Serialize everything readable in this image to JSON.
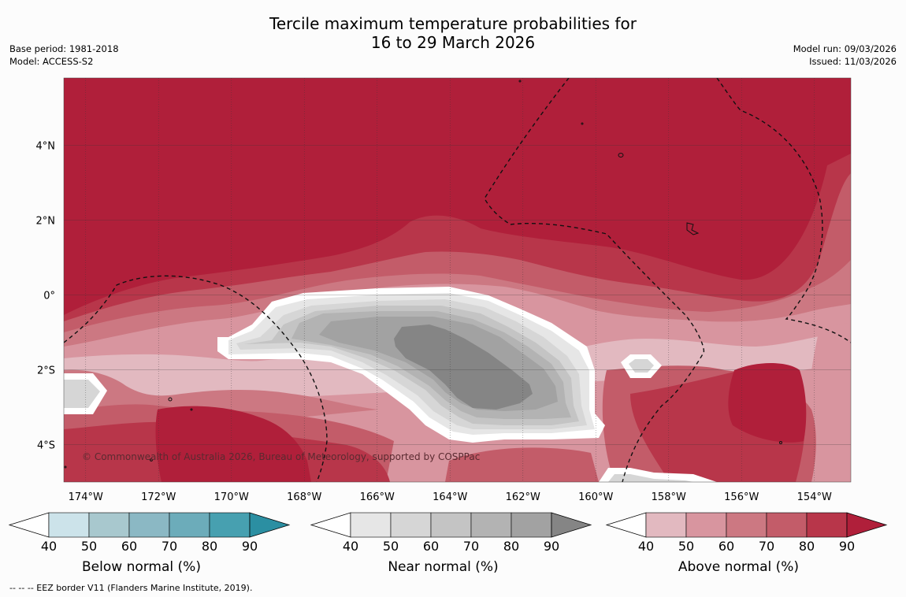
{
  "title": {
    "line1": "Tercile maximum temperature probabilities for",
    "line2": "16 to 29 March 2026"
  },
  "meta": {
    "base_period": "Base period: 1981-2018",
    "model": "Model: ACCESS-S2",
    "model_run": "Model run: 09/03/2026",
    "issued": "Issued: 11/03/2026"
  },
  "map": {
    "copyright": "© Commonwealth of Australia 2026, Bureau of Meteorology, supported by COSPPac",
    "lon_labels": [
      "174°W",
      "172°W",
      "170°W",
      "168°W",
      "166°W",
      "164°W",
      "162°W",
      "160°W",
      "158°W",
      "156°W",
      "154°W"
    ],
    "lat_labels": [
      "4°N",
      "2°N",
      "0°",
      "2°S",
      "4°S"
    ],
    "lon_range": [
      -174.6,
      -153.0
    ],
    "lat_range": [
      -5.0,
      5.8
    ],
    "lon_ticks": [
      -174,
      -172,
      -170,
      -168,
      -166,
      -164,
      -162,
      -160,
      -158,
      -156,
      -154
    ],
    "lat_ticks": [
      4,
      2,
      0,
      -2,
      -4
    ]
  },
  "colorbars": {
    "ticks": [
      "40",
      "50",
      "60",
      "70",
      "80",
      "90"
    ],
    "below": {
      "title": "Below normal (%)",
      "colors": [
        "#cce3ea",
        "#a8c8ce",
        "#8bb8c4",
        "#6cacba",
        "#47a0b0",
        "#2b8fa2"
      ]
    },
    "near": {
      "title": "Near normal (%)",
      "colors": [
        "#e6e6e6",
        "#d6d6d6",
        "#c4c4c4",
        "#b3b3b3",
        "#a2a2a2",
        "#858585"
      ]
    },
    "above": {
      "title": "Above normal (%)",
      "colors": [
        "#e2b9c0",
        "#d8959f",
        "#cc7882",
        "#c35c69",
        "#b8364a",
        "#b01f3a"
      ]
    }
  },
  "footnote": "--  --  -- EEZ border V11 (Flanders Marine Institute, 2019)."
}
